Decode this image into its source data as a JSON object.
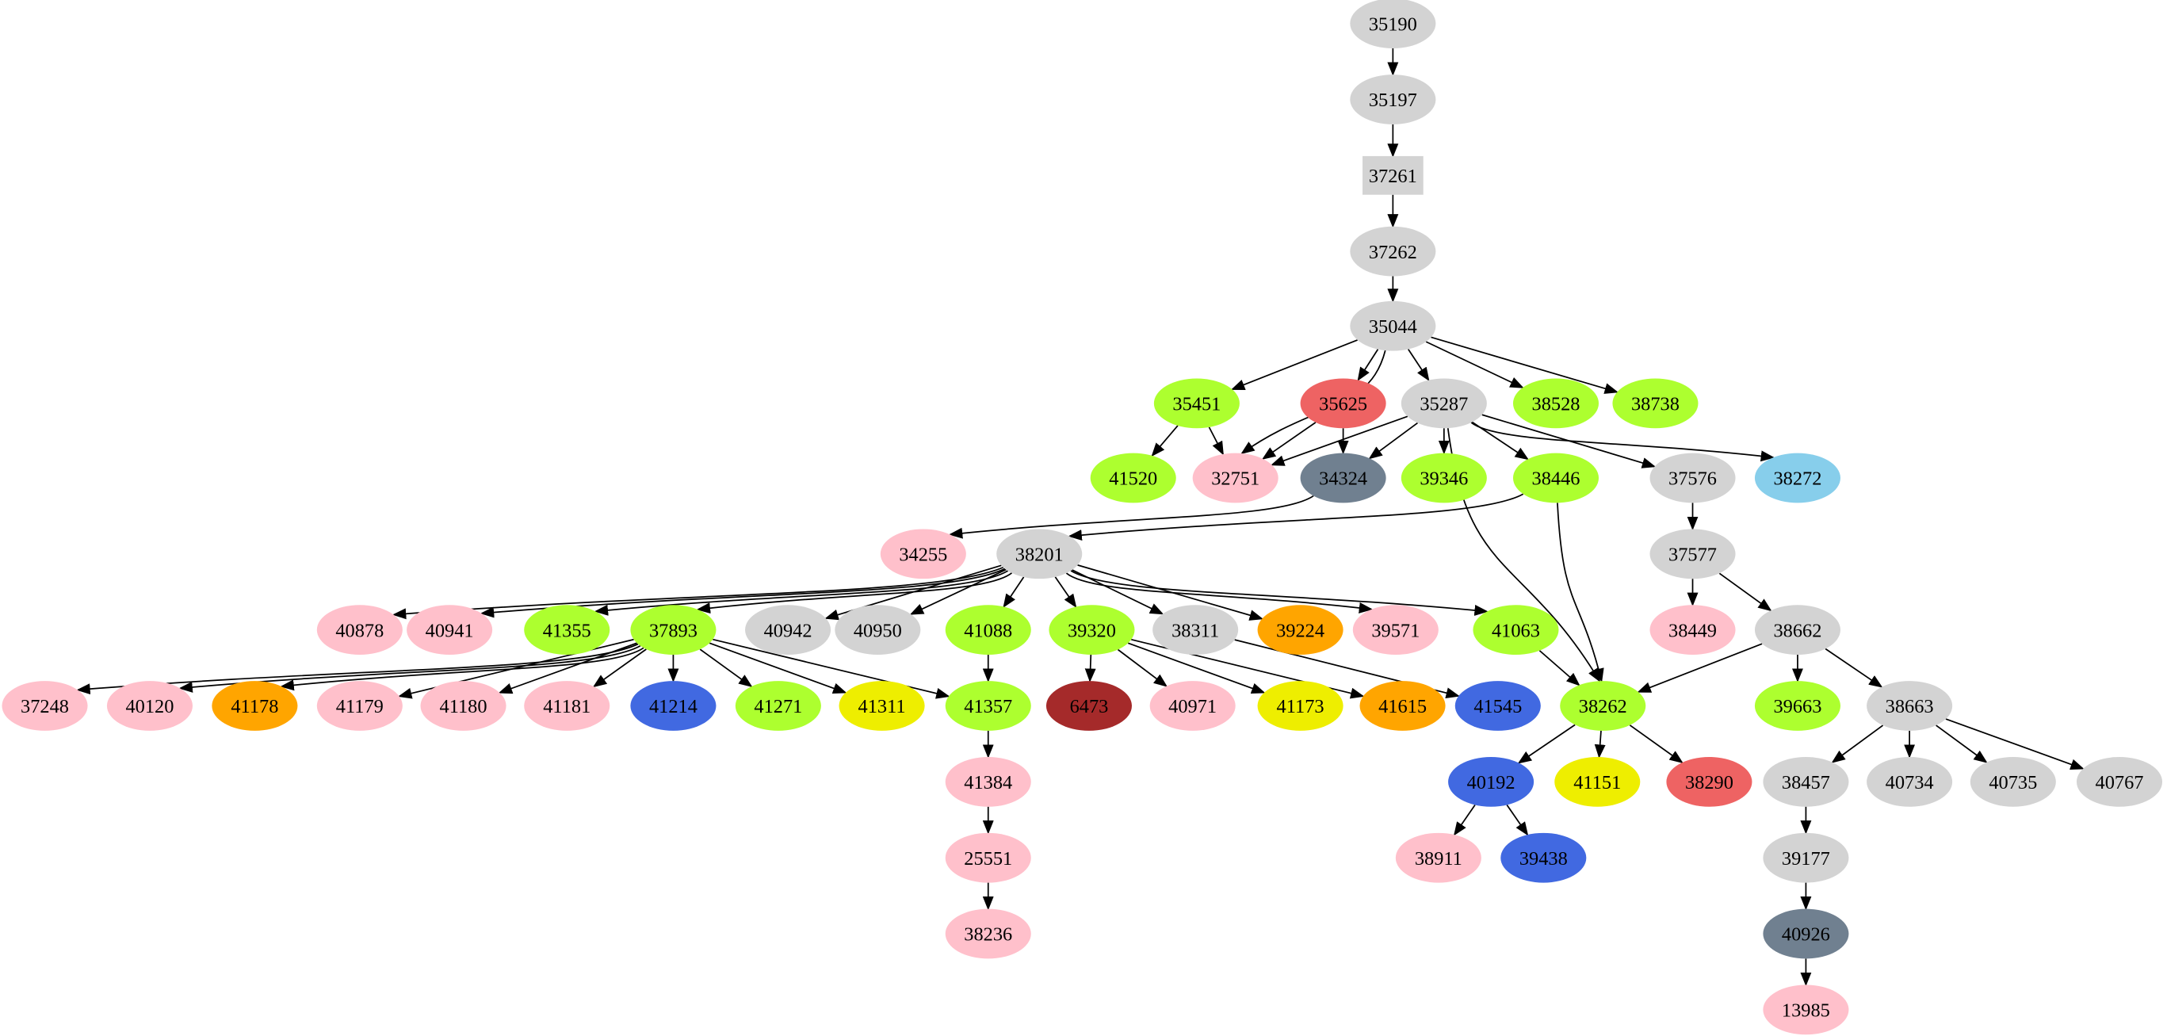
{
  "colors": {
    "gray": "#d3d3d3",
    "green": "#adff2f",
    "pink": "#ffc0cb",
    "red": "#ee6363",
    "slate": "#708090",
    "skyblue": "#87ceeb",
    "orange": "#ffa500",
    "blue": "#4169e1",
    "yellow": "#eeee00",
    "brown": "#a52a2a"
  },
  "nodes": [
    {
      "id": "35190",
      "color": "gray"
    },
    {
      "id": "35197",
      "color": "gray"
    },
    {
      "id": "37261",
      "color": "gray",
      "shape": "box"
    },
    {
      "id": "37262",
      "color": "gray"
    },
    {
      "id": "35044",
      "color": "gray"
    },
    {
      "id": "35451",
      "color": "green"
    },
    {
      "id": "35625",
      "color": "red"
    },
    {
      "id": "35287",
      "color": "gray"
    },
    {
      "id": "38528",
      "color": "green"
    },
    {
      "id": "38738",
      "color": "green"
    },
    {
      "id": "41520",
      "color": "green"
    },
    {
      "id": "32751",
      "color": "pink"
    },
    {
      "id": "34324",
      "color": "slate"
    },
    {
      "id": "39346",
      "color": "green"
    },
    {
      "id": "38446",
      "color": "green"
    },
    {
      "id": "37576",
      "color": "gray"
    },
    {
      "id": "38272",
      "color": "skyblue"
    },
    {
      "id": "34255",
      "color": "pink"
    },
    {
      "id": "38201",
      "color": "gray"
    },
    {
      "id": "37577",
      "color": "gray"
    },
    {
      "id": "40878",
      "color": "pink"
    },
    {
      "id": "40941",
      "color": "pink"
    },
    {
      "id": "41355",
      "color": "green"
    },
    {
      "id": "37893",
      "color": "green"
    },
    {
      "id": "40942",
      "color": "gray"
    },
    {
      "id": "40950",
      "color": "gray"
    },
    {
      "id": "41088",
      "color": "green"
    },
    {
      "id": "39320",
      "color": "green"
    },
    {
      "id": "38311",
      "color": "gray"
    },
    {
      "id": "39224",
      "color": "orange"
    },
    {
      "id": "39571",
      "color": "pink"
    },
    {
      "id": "41063",
      "color": "green"
    },
    {
      "id": "38449",
      "color": "pink"
    },
    {
      "id": "38662",
      "color": "gray"
    },
    {
      "id": "37248",
      "color": "pink"
    },
    {
      "id": "40120",
      "color": "pink"
    },
    {
      "id": "41178",
      "color": "orange"
    },
    {
      "id": "41179",
      "color": "pink"
    },
    {
      "id": "41180",
      "color": "pink"
    },
    {
      "id": "41181",
      "color": "pink"
    },
    {
      "id": "41214",
      "color": "blue"
    },
    {
      "id": "41271",
      "color": "green"
    },
    {
      "id": "41311",
      "color": "yellow"
    },
    {
      "id": "41357",
      "color": "green"
    },
    {
      "id": "6473",
      "color": "brown"
    },
    {
      "id": "40971",
      "color": "pink"
    },
    {
      "id": "41173",
      "color": "yellow"
    },
    {
      "id": "41615",
      "color": "orange"
    },
    {
      "id": "41545",
      "color": "blue"
    },
    {
      "id": "38262",
      "color": "green"
    },
    {
      "id": "39663",
      "color": "green"
    },
    {
      "id": "38663",
      "color": "gray"
    },
    {
      "id": "41384",
      "color": "pink"
    },
    {
      "id": "40192",
      "color": "blue"
    },
    {
      "id": "41151",
      "color": "yellow"
    },
    {
      "id": "38290",
      "color": "red"
    },
    {
      "id": "38457",
      "color": "gray"
    },
    {
      "id": "40734",
      "color": "gray"
    },
    {
      "id": "40735",
      "color": "gray"
    },
    {
      "id": "40767",
      "color": "gray"
    },
    {
      "id": "25551",
      "color": "pink"
    },
    {
      "id": "38911",
      "color": "pink"
    },
    {
      "id": "39438",
      "color": "blue"
    },
    {
      "id": "39177",
      "color": "gray"
    },
    {
      "id": "38236",
      "color": "pink"
    },
    {
      "id": "40926",
      "color": "slate"
    },
    {
      "id": "13985",
      "color": "pink"
    }
  ],
  "edges": [
    [
      "35190",
      "35197"
    ],
    [
      "35197",
      "37261"
    ],
    [
      "37261",
      "37262"
    ],
    [
      "37262",
      "35044"
    ],
    [
      "35044",
      "35451"
    ],
    [
      "35044",
      "32751"
    ],
    [
      "35044",
      "35625"
    ],
    [
      "35044",
      "35287"
    ],
    [
      "35044",
      "38528"
    ],
    [
      "35044",
      "38738"
    ],
    [
      "35451",
      "41520"
    ],
    [
      "35451",
      "32751"
    ],
    [
      "35625",
      "32751"
    ],
    [
      "35625",
      "34324"
    ],
    [
      "35287",
      "32751"
    ],
    [
      "35287",
      "34324"
    ],
    [
      "35287",
      "39346"
    ],
    [
      "35287",
      "38446"
    ],
    [
      "35287",
      "38262"
    ],
    [
      "35287",
      "37576"
    ],
    [
      "35287",
      "38272"
    ],
    [
      "34324",
      "34255"
    ],
    [
      "38446",
      "38201"
    ],
    [
      "38446",
      "38262"
    ],
    [
      "37576",
      "37577"
    ],
    [
      "37577",
      "38449"
    ],
    [
      "37577",
      "38662"
    ],
    [
      "38201",
      "40878"
    ],
    [
      "38201",
      "40941"
    ],
    [
      "38201",
      "41355"
    ],
    [
      "38201",
      "37893"
    ],
    [
      "38201",
      "40942"
    ],
    [
      "38201",
      "40950"
    ],
    [
      "38201",
      "41088"
    ],
    [
      "38201",
      "39320"
    ],
    [
      "38201",
      "38311"
    ],
    [
      "38201",
      "39224"
    ],
    [
      "38201",
      "39571"
    ],
    [
      "38201",
      "41063"
    ],
    [
      "37893",
      "37248"
    ],
    [
      "37893",
      "40120"
    ],
    [
      "37893",
      "41178"
    ],
    [
      "37893",
      "41179"
    ],
    [
      "37893",
      "41180"
    ],
    [
      "37893",
      "41181"
    ],
    [
      "37893",
      "41214"
    ],
    [
      "37893",
      "41271"
    ],
    [
      "37893",
      "41311"
    ],
    [
      "37893",
      "41357"
    ],
    [
      "41088",
      "41357"
    ],
    [
      "39320",
      "6473"
    ],
    [
      "39320",
      "40971"
    ],
    [
      "39320",
      "41173"
    ],
    [
      "39320",
      "41615"
    ],
    [
      "38311",
      "41545"
    ],
    [
      "41063",
      "38262"
    ],
    [
      "38662",
      "38262"
    ],
    [
      "38662",
      "39663"
    ],
    [
      "38662",
      "38663"
    ],
    [
      "38663",
      "38457"
    ],
    [
      "38663",
      "40734"
    ],
    [
      "38663",
      "40735"
    ],
    [
      "38663",
      "40767"
    ],
    [
      "38262",
      "40192"
    ],
    [
      "38262",
      "41151"
    ],
    [
      "38262",
      "38290"
    ],
    [
      "40192",
      "38911"
    ],
    [
      "40192",
      "39438"
    ],
    [
      "41357",
      "41384"
    ],
    [
      "41384",
      "25551"
    ],
    [
      "25551",
      "38236"
    ],
    [
      "38457",
      "39177"
    ],
    [
      "39177",
      "40926"
    ],
    [
      "40926",
      "13985"
    ]
  ]
}
